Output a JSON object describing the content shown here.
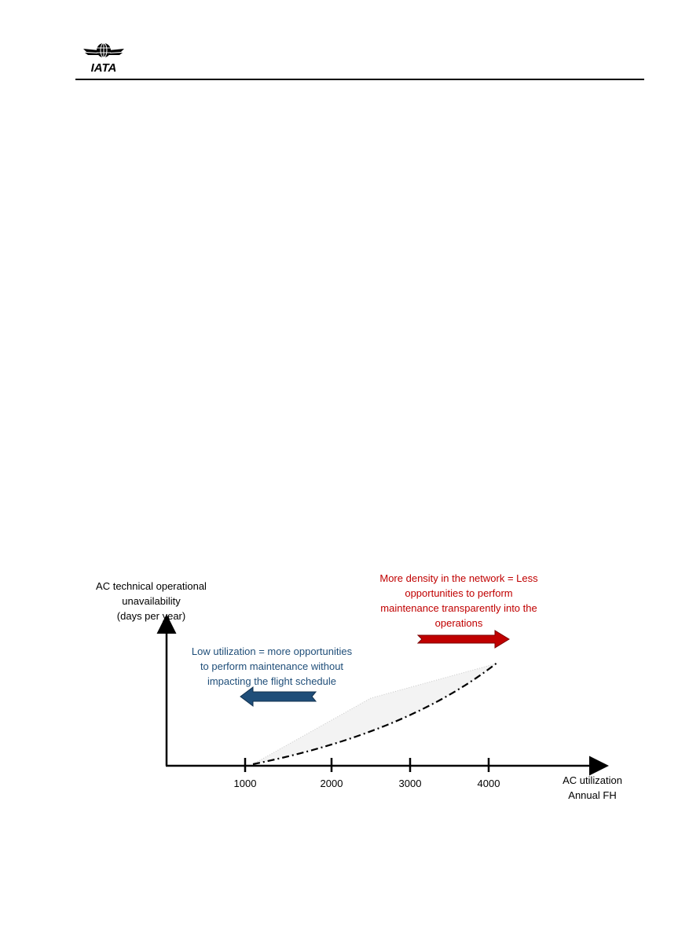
{
  "header": {
    "logo_text": "IATA"
  },
  "figure": {
    "y_axis_title": [
      "AC technical operational",
      "unavailability",
      "(days per year)"
    ],
    "x_axis_title": [
      "AC utilization",
      "Annual FH"
    ],
    "x_ticks": [
      "1000",
      "2000",
      "3000",
      "4000"
    ],
    "note_high_utilization": [
      "More density in the network = Less",
      "opportunities to perform",
      "maintenance transparently into the",
      "operations"
    ],
    "note_low_utilization": [
      "Low utilization = more opportunities",
      "to perform maintenance without",
      "impacting the flight schedule"
    ],
    "colors": {
      "high_note": "#c00000",
      "low_note": "#1f4e79",
      "red_arrow": "#c00000",
      "blue_arrow": "#1f4e79"
    }
  },
  "chart_data": {
    "type": "line",
    "title": "",
    "xlabel": "AC utilization Annual FH",
    "ylabel": "AC technical operational unavailability (days per year)",
    "x_tick_labels": [
      "1000",
      "2000",
      "3000",
      "4000"
    ],
    "series": [
      {
        "style": "dash-dot",
        "x": [
          1100,
          1500,
          2000,
          2500,
          3000,
          3500,
          4100
        ],
        "y": [
          0,
          3,
          8,
          15,
          24,
          34,
          50
        ]
      }
    ],
    "shaded_area_upper_x": [
      1100,
      2500,
      4100
    ],
    "shaded_area_upper_y": [
      0,
      32,
      50
    ]
  }
}
